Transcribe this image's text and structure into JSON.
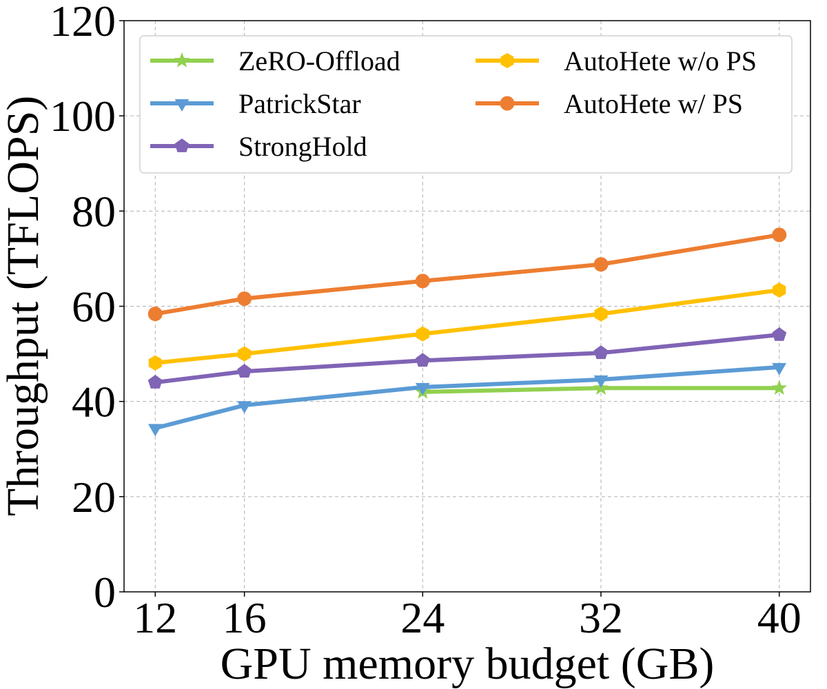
{
  "chart_data": {
    "type": "line",
    "title": "",
    "xlabel": "GPU memory budget (GB)",
    "ylabel": "Throughput (TFLOPS)",
    "x": [
      12,
      16,
      24,
      32,
      40
    ],
    "x_ticks": [
      "12",
      "16",
      "24",
      "32",
      "40"
    ],
    "xlim": [
      10.6,
      41.4
    ],
    "ylim": [
      0,
      120
    ],
    "y_ticks": [
      "0",
      "20",
      "40",
      "60",
      "80",
      "100",
      "120"
    ],
    "grid": true,
    "legend_position": "top",
    "series": [
      {
        "name": "ZeRO-Offload",
        "color": "#92d050",
        "marker": "star",
        "x": [
          24,
          32,
          40
        ],
        "values": [
          42,
          42.8,
          42.8
        ]
      },
      {
        "name": "PatrickStar",
        "color": "#5b9bd5",
        "marker": "triangle-down",
        "x": [
          12,
          16,
          24,
          32,
          40
        ],
        "values": [
          34.4,
          39.2,
          43,
          44.6,
          47.2
        ]
      },
      {
        "name": "StrongHold",
        "color": "#8064b5",
        "marker": "pentagon",
        "x": [
          12,
          16,
          24,
          32,
          40
        ],
        "values": [
          44,
          46.3,
          48.6,
          50.2,
          54
        ]
      },
      {
        "name": "AutoHete w/o PS",
        "color": "#ffc000",
        "marker": "hexagon",
        "x": [
          12,
          16,
          24,
          32,
          40
        ],
        "values": [
          48.1,
          50,
          54.2,
          58.4,
          63.4
        ]
      },
      {
        "name": "AutoHete w/ PS",
        "color": "#ed7d31",
        "marker": "circle",
        "x": [
          12,
          16,
          24,
          32,
          40
        ],
        "values": [
          58.4,
          61.6,
          65.3,
          68.8,
          75
        ]
      }
    ]
  }
}
